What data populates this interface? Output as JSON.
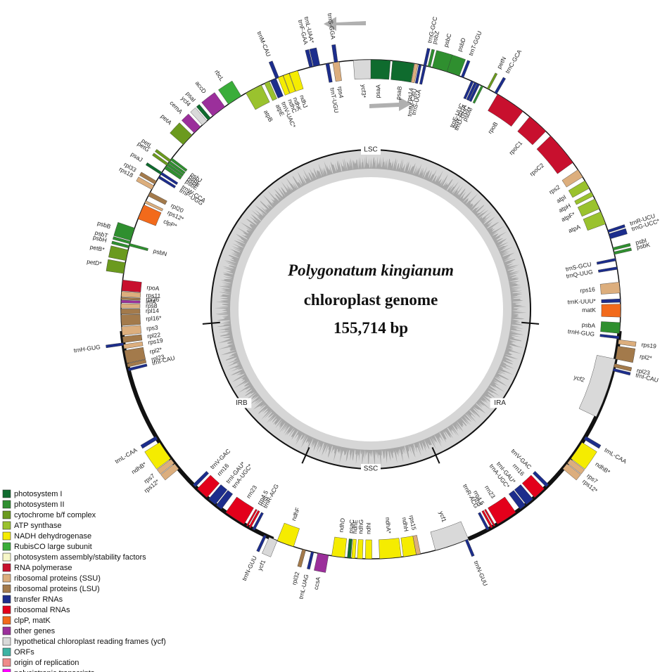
{
  "title": {
    "species": "Polygonatum kingianum",
    "line2": "chloroplast genome",
    "size": "155,714 bp"
  },
  "regions": [
    "LSC",
    "IRA",
    "SSC",
    "IRB"
  ],
  "genes": [
    "psaA",
    "psaB",
    "ycf3*",
    "rps4",
    "trnT-UGU",
    "trnS-GGA",
    "trnF-GAA",
    "trnL-UAA*",
    "ndhJ",
    "ndhK",
    "ndhC",
    "trnV-UAC*",
    "atpE",
    "atpB",
    "trnM-CAU",
    "rbcL",
    "accD",
    "psaI",
    "ycf4",
    "cemA",
    "petA",
    "psbJ",
    "psbL",
    "psbF",
    "psbE",
    "trnW-CCA",
    "trnP-UGG",
    "petL",
    "petG",
    "psaJ",
    "rpl33",
    "rps18",
    "rpl20",
    "rps12*",
    "clpP*",
    "psbB",
    "psbT",
    "psbH",
    "psbN",
    "petB*",
    "petD*",
    "rpoA",
    "rps11",
    "rpl36",
    "infA",
    "rps8",
    "rpl14",
    "rpl16*",
    "rps3",
    "rpl22",
    "rps19",
    "rpl2*",
    "rpl23",
    "trnI-CAU",
    "trnH-GUG",
    "trnL-CAA",
    "ndhB*",
    "rps7",
    "rps12*",
    "trnV-GAC",
    "rrn16",
    "trnI-GAU*",
    "trnA-UGC*",
    "rrn23",
    "rrn4.5",
    "rrn5",
    "trnR-ACG",
    "trnN-GUU",
    "ycf1",
    "ndhF",
    "rpl32",
    "trnL-UAG",
    "ccsA",
    "ndhD",
    "psaC",
    "ndhE",
    "ndhG",
    "ndhI",
    "ndhA*",
    "ndhH",
    "rps15",
    "ycf1",
    "trnN-GUU",
    "trnR-ACG",
    "rrn5",
    "rrn4.5",
    "rrn23",
    "trnA-UGC*",
    "trnI-GAU*",
    "rrn16",
    "trnV-GAC",
    "rps12*",
    "rps7",
    "ndhB*",
    "trnL-CAA",
    "ycf2",
    "trnI-CAU",
    "rpl23",
    "rpl2*",
    "rps19",
    "trnH-GUG",
    "psbA",
    "matK",
    "trnK-UUU*",
    "rps16",
    "trnQ-UUG",
    "trnS-GCU",
    "psbK",
    "psbI",
    "trnG-UCC*",
    "trnR-UCU",
    "atpA",
    "atpF*",
    "atpH",
    "atpI",
    "rps2",
    "rpoC2",
    "rpoC1",
    "rpoB",
    "trnC-GCA",
    "petN",
    "psbM",
    "trnD-GUC",
    "trnY-GUA",
    "trnE-UUC",
    "trnT-GGU",
    "psbD",
    "psbC",
    "psbZ",
    "trnG-GCC",
    "trnS-UGA",
    "trnfM-CAU",
    "rps14"
  ],
  "legend": [
    {
      "label": "photosystem I",
      "color": "#0f6b2e"
    },
    {
      "label": "photosystem II",
      "color": "#2f8f2f"
    },
    {
      "label": "cytochrome b/f complex",
      "color": "#6b9a1e"
    },
    {
      "label": "ATP synthase",
      "color": "#9ac22e"
    },
    {
      "label": "NADH dehydrogenase",
      "color": "#f5ec00"
    },
    {
      "label": "RubisCO large subunit",
      "color": "#3aad3a"
    },
    {
      "label": "photosystem assembly/stability factors",
      "color": "#f7f7c8"
    },
    {
      "label": "RNA polymerase",
      "color": "#c8102e"
    },
    {
      "label": "ribosomal proteins (SSU)",
      "color": "#dcae7d"
    },
    {
      "label": "ribosomal proteins (LSU)",
      "color": "#a37a4b"
    },
    {
      "label": "transfer RNAs",
      "color": "#1c2d8c"
    },
    {
      "label": "ribosomal RNAs",
      "color": "#e3001b"
    },
    {
      "label": "clpP, matK",
      "color": "#f26a1b"
    },
    {
      "label": "other genes",
      "color": "#9b2f9b"
    },
    {
      "label": "hypothetical chloroplast reading frames (ycf)",
      "color": "#d9d9d9"
    },
    {
      "label": "ORFs",
      "color": "#3db3a3"
    },
    {
      "label": "origin of replication",
      "color": "#f08a8a"
    },
    {
      "label": "polycistronic transcripts",
      "color": "#ff00ff"
    }
  ]
}
